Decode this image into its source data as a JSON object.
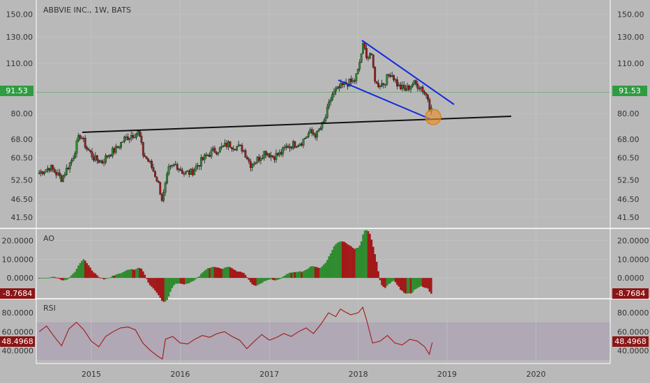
{
  "chart_data": [
    {
      "type": "candlestick",
      "title": "ABBVIE INC., 1W, BATS",
      "y_ticks": [
        "150.00",
        "130.00",
        "110.00",
        "91.53",
        "80.00",
        "68.00",
        "60.50",
        "52.50",
        "46.50",
        "41.50"
      ],
      "x_ticks": [
        "2015",
        "2016",
        "2017",
        "2018",
        "2019",
        "2020"
      ],
      "last_price_label": "91.53",
      "y_scale": "log",
      "ylim": [
        39,
        160
      ],
      "up_color": "#2e8b2e",
      "down_color": "#a31818",
      "candles_close_path": [
        [
          "2014-06-01",
          55
        ],
        [
          "2014-07-15",
          57
        ],
        [
          "2014-09-01",
          53
        ],
        [
          "2014-10-15",
          60
        ],
        [
          "2014-11-15",
          70
        ],
        [
          "2014-12-15",
          64
        ],
        [
          "2015-01-15",
          60
        ],
        [
          "2015-02-15",
          59
        ],
        [
          "2015-03-15",
          62
        ],
        [
          "2015-04-15",
          64
        ],
        [
          "2015-05-15",
          68
        ],
        [
          "2015-06-15",
          70
        ],
        [
          "2015-07-15",
          71
        ],
        [
          "2015-08-01",
          62
        ],
        [
          "2015-09-01",
          58
        ],
        [
          "2015-10-01",
          52
        ],
        [
          "2015-10-20",
          46
        ],
        [
          "2015-11-15",
          56
        ],
        [
          "2015-12-15",
          58
        ],
        [
          "2016-01-15",
          55
        ],
        [
          "2016-02-15",
          55
        ],
        [
          "2016-03-15",
          58
        ],
        [
          "2016-04-15",
          61
        ],
        [
          "2016-05-15",
          63
        ],
        [
          "2016-06-15",
          64
        ],
        [
          "2016-07-15",
          66
        ],
        [
          "2016-08-15",
          65
        ],
        [
          "2016-09-15",
          64
        ],
        [
          "2016-10-15",
          58
        ],
        [
          "2016-11-15",
          60
        ],
        [
          "2016-12-15",
          63
        ],
        [
          "2017-01-15",
          61
        ],
        [
          "2017-02-15",
          62
        ],
        [
          "2017-03-15",
          65
        ],
        [
          "2017-04-15",
          66
        ],
        [
          "2017-05-15",
          67
        ],
        [
          "2017-06-15",
          71
        ],
        [
          "2017-07-15",
          70
        ],
        [
          "2017-08-15",
          76
        ],
        [
          "2017-09-15",
          90
        ],
        [
          "2017-10-15",
          94
        ],
        [
          "2017-11-15",
          97
        ],
        [
          "2017-12-15",
          98
        ],
        [
          "2018-01-01",
          105
        ],
        [
          "2018-01-20",
          123
        ],
        [
          "2018-02-10",
          114
        ],
        [
          "2018-02-20",
          118
        ],
        [
          "2018-03-15",
          96
        ],
        [
          "2018-04-15",
          97
        ],
        [
          "2018-05-15",
          104
        ],
        [
          "2018-06-15",
          95
        ],
        [
          "2018-07-15",
          93
        ],
        [
          "2018-08-15",
          97
        ],
        [
          "2018-09-15",
          95
        ],
        [
          "2018-10-15",
          88
        ],
        [
          "2018-10-25",
          80
        ],
        [
          "2018-11-01",
          91.53
        ]
      ]
    },
    {
      "type": "histogram",
      "title": "AO",
      "y_ticks": [
        "20.0000",
        "10.0000",
        "0.0000"
      ],
      "last_value_label": "-8.7684",
      "ylim": [
        -10,
        25
      ]
    },
    {
      "type": "line",
      "title": "RSI",
      "y_ticks": [
        "80.0000",
        "60.0000",
        "40.0000"
      ],
      "last_value_label": "48.4968",
      "ylim": [
        27,
        92
      ],
      "band": [
        30,
        70
      ],
      "rsi_points": [
        [
          "2014-06-01",
          60
        ],
        [
          "2014-07-01",
          66
        ],
        [
          "2014-08-01",
          55
        ],
        [
          "2014-09-01",
          45
        ],
        [
          "2014-10-01",
          63
        ],
        [
          "2014-11-01",
          70
        ],
        [
          "2014-12-01",
          62
        ],
        [
          "2015-01-01",
          50
        ],
        [
          "2015-02-01",
          44
        ],
        [
          "2015-03-01",
          55
        ],
        [
          "2015-04-01",
          60
        ],
        [
          "2015-05-01",
          64
        ],
        [
          "2015-06-01",
          65
        ],
        [
          "2015-07-01",
          62
        ],
        [
          "2015-08-01",
          48
        ],
        [
          "2015-09-01",
          40
        ],
        [
          "2015-10-01",
          34
        ],
        [
          "2015-10-20",
          31
        ],
        [
          "2015-11-01",
          52
        ],
        [
          "2015-12-01",
          55
        ],
        [
          "2016-01-01",
          48
        ],
        [
          "2016-02-01",
          47
        ],
        [
          "2016-03-01",
          52
        ],
        [
          "2016-04-01",
          56
        ],
        [
          "2016-05-01",
          54
        ],
        [
          "2016-06-01",
          58
        ],
        [
          "2016-07-01",
          60
        ],
        [
          "2016-08-01",
          55
        ],
        [
          "2016-09-01",
          51
        ],
        [
          "2016-10-01",
          42
        ],
        [
          "2016-11-01",
          50
        ],
        [
          "2016-12-01",
          57
        ],
        [
          "2017-01-01",
          51
        ],
        [
          "2017-02-01",
          54
        ],
        [
          "2017-03-01",
          58
        ],
        [
          "2017-04-01",
          55
        ],
        [
          "2017-05-01",
          60
        ],
        [
          "2017-06-01",
          64
        ],
        [
          "2017-07-01",
          58
        ],
        [
          "2017-08-01",
          68
        ],
        [
          "2017-09-01",
          80
        ],
        [
          "2017-10-01",
          76
        ],
        [
          "2017-10-20",
          84
        ],
        [
          "2017-11-01",
          82
        ],
        [
          "2017-12-01",
          78
        ],
        [
          "2018-01-01",
          80
        ],
        [
          "2018-01-20",
          86
        ],
        [
          "2018-02-05",
          72
        ],
        [
          "2018-03-01",
          48
        ],
        [
          "2018-04-01",
          50
        ],
        [
          "2018-05-01",
          56
        ],
        [
          "2018-06-01",
          48
        ],
        [
          "2018-07-01",
          46
        ],
        [
          "2018-08-01",
          52
        ],
        [
          "2018-09-01",
          50
        ],
        [
          "2018-10-01",
          44
        ],
        [
          "2018-10-20",
          36
        ],
        [
          "2018-11-01",
          48.4968
        ]
      ]
    }
  ]
}
